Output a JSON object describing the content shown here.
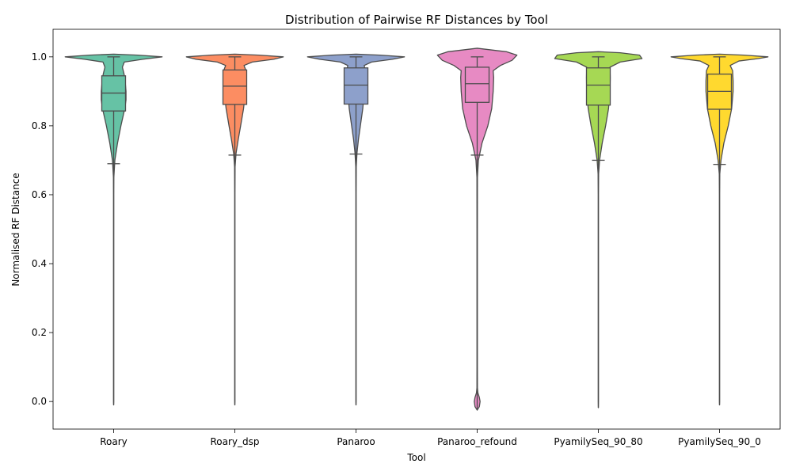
{
  "chart_data": {
    "type": "violin",
    "title": "Distribution of Pairwise RF Distances by Tool",
    "xlabel": "Tool",
    "ylabel": "Normalised RF Distance",
    "ylim": [
      -0.08,
      1.08
    ],
    "yticks": [
      "0.0",
      "0.2",
      "0.4",
      "0.6",
      "0.8",
      "1.0"
    ],
    "grid": false,
    "legend": "none",
    "categories": [
      "Roary",
      "Roary_dsp",
      "Panaroo",
      "Panaroo_refound",
      "PyamilySeq_90_80",
      "PyamilySeq_90_0"
    ],
    "series": [
      {
        "color": "#66c2a5",
        "box": {
          "whisker_low": 0.69,
          "q1": 0.843,
          "median": 0.895,
          "q3": 0.945,
          "whisker_high": 1.0
        },
        "range": [
          -0.01,
          1.008
        ],
        "density": [
          [
            -0.01,
            0.0
          ],
          [
            0.0,
            0.002
          ],
          [
            0.1,
            0.002
          ],
          [
            0.2,
            0.002
          ],
          [
            0.3,
            0.002
          ],
          [
            0.4,
            0.002
          ],
          [
            0.5,
            0.002
          ],
          [
            0.6,
            0.002
          ],
          [
            0.65,
            0.004
          ],
          [
            0.7,
            0.025
          ],
          [
            0.75,
            0.08
          ],
          [
            0.8,
            0.15
          ],
          [
            0.85,
            0.23
          ],
          [
            0.875,
            0.255
          ],
          [
            0.9,
            0.255
          ],
          [
            0.925,
            0.24
          ],
          [
            0.95,
            0.215
          ],
          [
            0.97,
            0.18
          ],
          [
            0.985,
            0.22
          ],
          [
            0.993,
            0.6
          ],
          [
            1.0,
            1.0
          ],
          [
            1.005,
            0.5
          ],
          [
            1.008,
            0.0
          ]
        ]
      },
      {
        "color": "#fc8d62",
        "box": {
          "whisker_low": 0.715,
          "q1": 0.862,
          "median": 0.915,
          "q3": 0.962,
          "whisker_high": 1.0
        },
        "range": [
          -0.01,
          1.008
        ],
        "density": [
          [
            -0.01,
            0.0
          ],
          [
            0.0,
            0.002
          ],
          [
            0.2,
            0.002
          ],
          [
            0.4,
            0.002
          ],
          [
            0.6,
            0.002
          ],
          [
            0.68,
            0.005
          ],
          [
            0.72,
            0.025
          ],
          [
            0.76,
            0.07
          ],
          [
            0.8,
            0.12
          ],
          [
            0.85,
            0.18
          ],
          [
            0.9,
            0.22
          ],
          [
            0.93,
            0.23
          ],
          [
            0.96,
            0.23
          ],
          [
            0.975,
            0.19
          ],
          [
            0.985,
            0.36
          ],
          [
            0.993,
            0.8
          ],
          [
            1.0,
            1.0
          ],
          [
            1.005,
            0.5
          ],
          [
            1.008,
            0.0
          ]
        ]
      },
      {
        "color": "#8da0cb",
        "box": {
          "whisker_low": 0.718,
          "q1": 0.863,
          "median": 0.918,
          "q3": 0.968,
          "whisker_high": 1.0
        },
        "range": [
          -0.01,
          1.008
        ],
        "density": [
          [
            -0.01,
            0.0
          ],
          [
            0.0,
            0.002
          ],
          [
            0.2,
            0.002
          ],
          [
            0.4,
            0.002
          ],
          [
            0.6,
            0.002
          ],
          [
            0.68,
            0.005
          ],
          [
            0.72,
            0.02
          ],
          [
            0.76,
            0.05
          ],
          [
            0.8,
            0.09
          ],
          [
            0.85,
            0.14
          ],
          [
            0.9,
            0.17
          ],
          [
            0.93,
            0.18
          ],
          [
            0.96,
            0.19
          ],
          [
            0.975,
            0.17
          ],
          [
            0.985,
            0.32
          ],
          [
            0.993,
            0.75
          ],
          [
            1.0,
            1.0
          ],
          [
            1.005,
            0.5
          ],
          [
            1.008,
            0.0
          ]
        ]
      },
      {
        "color": "#e78ac3",
        "box": {
          "whisker_low": 0.715,
          "q1": 0.868,
          "median": 0.922,
          "q3": 0.97,
          "whisker_high": 1.0
        },
        "range": [
          -0.025,
          1.025
        ],
        "density": [
          [
            -0.025,
            0.0
          ],
          [
            -0.015,
            0.045
          ],
          [
            0.0,
            0.06
          ],
          [
            0.012,
            0.045
          ],
          [
            0.025,
            0.015
          ],
          [
            0.04,
            0.005
          ],
          [
            0.1,
            0.004
          ],
          [
            0.3,
            0.004
          ],
          [
            0.5,
            0.004
          ],
          [
            0.65,
            0.005
          ],
          [
            0.7,
            0.025
          ],
          [
            0.75,
            0.1
          ],
          [
            0.8,
            0.22
          ],
          [
            0.85,
            0.3
          ],
          [
            0.9,
            0.33
          ],
          [
            0.94,
            0.34
          ],
          [
            0.96,
            0.33
          ],
          [
            0.975,
            0.48
          ],
          [
            0.99,
            0.72
          ],
          [
            1.005,
            0.82
          ],
          [
            1.015,
            0.6
          ],
          [
            1.025,
            0.0
          ]
        ]
      },
      {
        "color": "#a6d854",
        "box": {
          "whisker_low": 0.7,
          "q1": 0.86,
          "median": 0.918,
          "q3": 0.968,
          "whisker_high": 1.0
        },
        "range": [
          -0.018,
          1.015
        ],
        "density": [
          [
            -0.018,
            0.0
          ],
          [
            0.0,
            0.002
          ],
          [
            0.2,
            0.002
          ],
          [
            0.4,
            0.002
          ],
          [
            0.6,
            0.002
          ],
          [
            0.66,
            0.005
          ],
          [
            0.7,
            0.025
          ],
          [
            0.75,
            0.08
          ],
          [
            0.8,
            0.15
          ],
          [
            0.85,
            0.21
          ],
          [
            0.9,
            0.24
          ],
          [
            0.94,
            0.245
          ],
          [
            0.97,
            0.24
          ],
          [
            0.985,
            0.45
          ],
          [
            0.995,
            0.9
          ],
          [
            1.005,
            0.85
          ],
          [
            1.012,
            0.45
          ],
          [
            1.015,
            0.0
          ]
        ]
      },
      {
        "color": "#ffd92f",
        "box": {
          "whisker_low": 0.688,
          "q1": 0.848,
          "median": 0.9,
          "q3": 0.95,
          "whisker_high": 1.0
        },
        "range": [
          -0.01,
          1.008
        ],
        "density": [
          [
            -0.01,
            0.0
          ],
          [
            0.0,
            0.002
          ],
          [
            0.2,
            0.002
          ],
          [
            0.4,
            0.002
          ],
          [
            0.6,
            0.002
          ],
          [
            0.66,
            0.005
          ],
          [
            0.7,
            0.03
          ],
          [
            0.75,
            0.09
          ],
          [
            0.8,
            0.18
          ],
          [
            0.85,
            0.25
          ],
          [
            0.9,
            0.28
          ],
          [
            0.93,
            0.28
          ],
          [
            0.96,
            0.27
          ],
          [
            0.975,
            0.22
          ],
          [
            0.988,
            0.4
          ],
          [
            0.995,
            0.8
          ],
          [
            1.0,
            1.0
          ],
          [
            1.005,
            0.5
          ],
          [
            1.008,
            0.0
          ]
        ]
      }
    ]
  }
}
